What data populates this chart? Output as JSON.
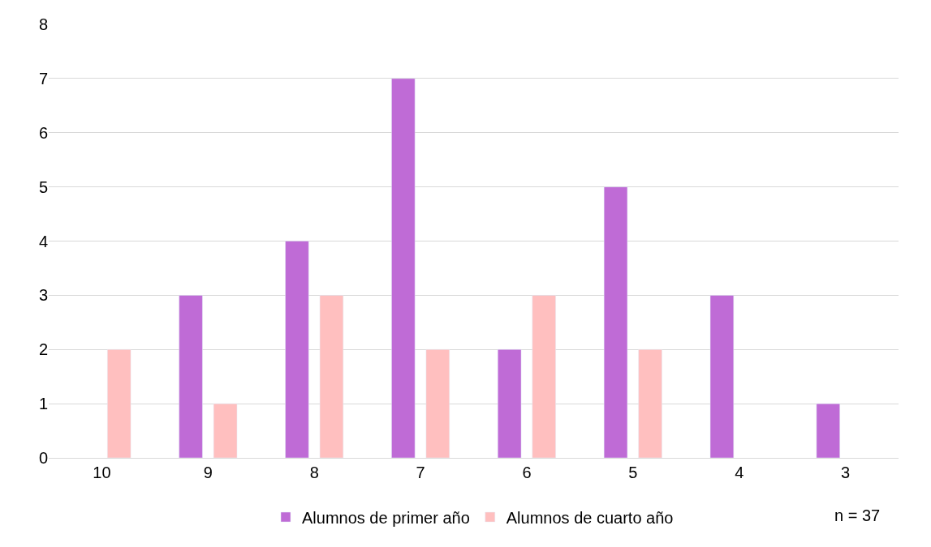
{
  "chart_data": {
    "type": "bar",
    "categories": [
      "10",
      "9",
      "8",
      "7",
      "6",
      "5",
      "4",
      "3"
    ],
    "series": [
      {
        "name": "Alumnos de primer año",
        "color": "#bf6bd6",
        "values": [
          null,
          3,
          4,
          7,
          2,
          5,
          3,
          1
        ]
      },
      {
        "name": "Alumnos de cuarto año",
        "color": "#ffbfbf",
        "values": [
          2,
          1,
          3,
          2,
          3,
          2,
          null,
          null
        ]
      }
    ],
    "ylim": [
      0,
      8
    ],
    "yticks": [
      0,
      1,
      2,
      3,
      4,
      5,
      6,
      7,
      8
    ],
    "grid": "y",
    "legend": "bottom",
    "annotations": [
      "n = 37"
    ]
  }
}
